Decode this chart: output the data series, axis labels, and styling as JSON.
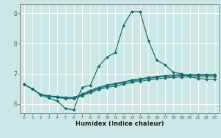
{
  "xlabel": "Humidex (Indice chaleur)",
  "xlim": [
    -0.5,
    23.5
  ],
  "ylim": [
    5.7,
    9.3
  ],
  "yticks": [
    6,
    7,
    8,
    9
  ],
  "xticks": [
    0,
    1,
    2,
    3,
    4,
    5,
    6,
    7,
    8,
    9,
    10,
    11,
    12,
    13,
    14,
    15,
    16,
    17,
    18,
    19,
    20,
    21,
    22,
    23
  ],
  "bg_color": "#cce8e6",
  "grid_color": "#ffffff",
  "line_color": "#1a6b6b",
  "lines": [
    {
      "x": [
        0,
        1,
        2,
        3,
        4,
        5,
        6,
        7,
        8,
        9,
        10,
        11,
        12,
        13,
        14,
        15,
        16,
        17,
        18,
        19,
        20,
        21,
        22,
        23
      ],
      "y": [
        6.65,
        6.5,
        6.3,
        6.2,
        6.1,
        5.85,
        5.82,
        6.55,
        6.62,
        7.25,
        7.55,
        7.7,
        8.6,
        9.05,
        9.05,
        8.1,
        7.45,
        7.3,
        7.05,
        7.0,
        6.9,
        6.85,
        6.82,
        6.82
      ]
    },
    {
      "x": [
        0,
        1,
        2,
        3,
        4,
        5,
        6,
        7,
        8,
        9,
        10,
        11,
        12,
        13,
        14,
        15,
        16,
        17,
        18,
        19,
        20,
        21,
        22,
        23
      ],
      "y": [
        6.65,
        6.5,
        6.32,
        6.25,
        6.22,
        6.18,
        6.18,
        6.28,
        6.38,
        6.48,
        6.55,
        6.6,
        6.65,
        6.72,
        6.75,
        6.8,
        6.83,
        6.86,
        6.88,
        6.89,
        6.9,
        6.9,
        6.9,
        6.9
      ]
    },
    {
      "x": [
        0,
        1,
        2,
        3,
        4,
        5,
        6,
        7,
        8,
        9,
        10,
        11,
        12,
        13,
        14,
        15,
        16,
        17,
        18,
        19,
        20,
        21,
        22,
        23
      ],
      "y": [
        6.65,
        6.5,
        6.32,
        6.26,
        6.24,
        6.2,
        6.2,
        6.3,
        6.42,
        6.52,
        6.6,
        6.65,
        6.7,
        6.77,
        6.8,
        6.85,
        6.88,
        6.91,
        6.93,
        6.94,
        6.95,
        6.95,
        6.95,
        6.95
      ]
    },
    {
      "x": [
        0,
        1,
        2,
        3,
        4,
        5,
        6,
        7,
        8,
        9,
        10,
        11,
        12,
        13,
        14,
        15,
        16,
        17,
        18,
        19,
        20,
        21,
        22,
        23
      ],
      "y": [
        6.65,
        6.5,
        6.32,
        6.27,
        6.25,
        6.22,
        6.22,
        6.33,
        6.45,
        6.55,
        6.63,
        6.68,
        6.73,
        6.8,
        6.83,
        6.88,
        6.91,
        6.94,
        6.96,
        6.97,
        6.98,
        6.98,
        6.98,
        6.98
      ]
    }
  ]
}
